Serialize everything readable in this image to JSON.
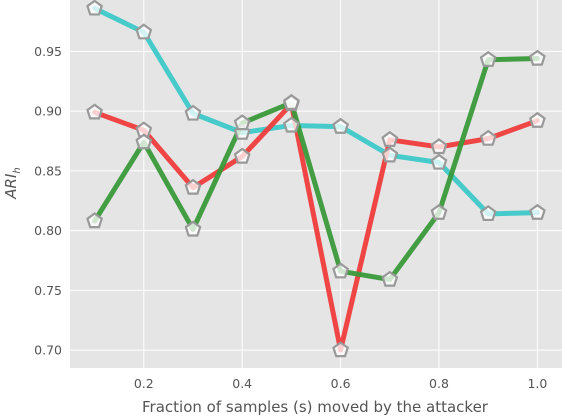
{
  "chart_data": {
    "type": "line",
    "title": "",
    "xlabel": "Fraction of samples (s) moved by the attacker",
    "ylabel": "ARI",
    "ylabel_sub": "h",
    "x": [
      0.1,
      0.2,
      0.3,
      0.4,
      0.5,
      0.6,
      0.7,
      0.8,
      0.9,
      1.0
    ],
    "xlim": [
      0.05,
      1.05
    ],
    "ylim": [
      0.685,
      0.993
    ],
    "xticks": [
      0.2,
      0.4,
      0.6,
      0.8,
      1.0
    ],
    "xtick_labels": [
      "0.2",
      "0.4",
      "0.6",
      "0.8",
      "1.0"
    ],
    "yticks": [
      0.7,
      0.75,
      0.8,
      0.85,
      0.9,
      0.95
    ],
    "ytick_labels": [
      "0.70",
      "0.75",
      "0.80",
      "0.85",
      "0.90",
      "0.95"
    ],
    "grid": true,
    "background": "#e5e5e5",
    "marker": "pentagon",
    "marker_edge_color": "#999999",
    "marker_face_color": "#ffffff",
    "series": [
      {
        "color": "#3dc8c8",
        "values": [
          0.986,
          0.966,
          0.898,
          0.882,
          0.888,
          0.887,
          0.863,
          0.857,
          0.814,
          0.815
        ]
      },
      {
        "color": "#f03c3c",
        "values": [
          0.899,
          0.884,
          0.836,
          0.862,
          0.906,
          0.7,
          0.876,
          0.87,
          0.877,
          0.892
        ]
      },
      {
        "color": "#3a993a",
        "values": [
          0.808,
          0.874,
          0.801,
          0.89,
          0.907,
          0.766,
          0.759,
          0.815,
          0.943,
          0.944
        ]
      }
    ]
  }
}
